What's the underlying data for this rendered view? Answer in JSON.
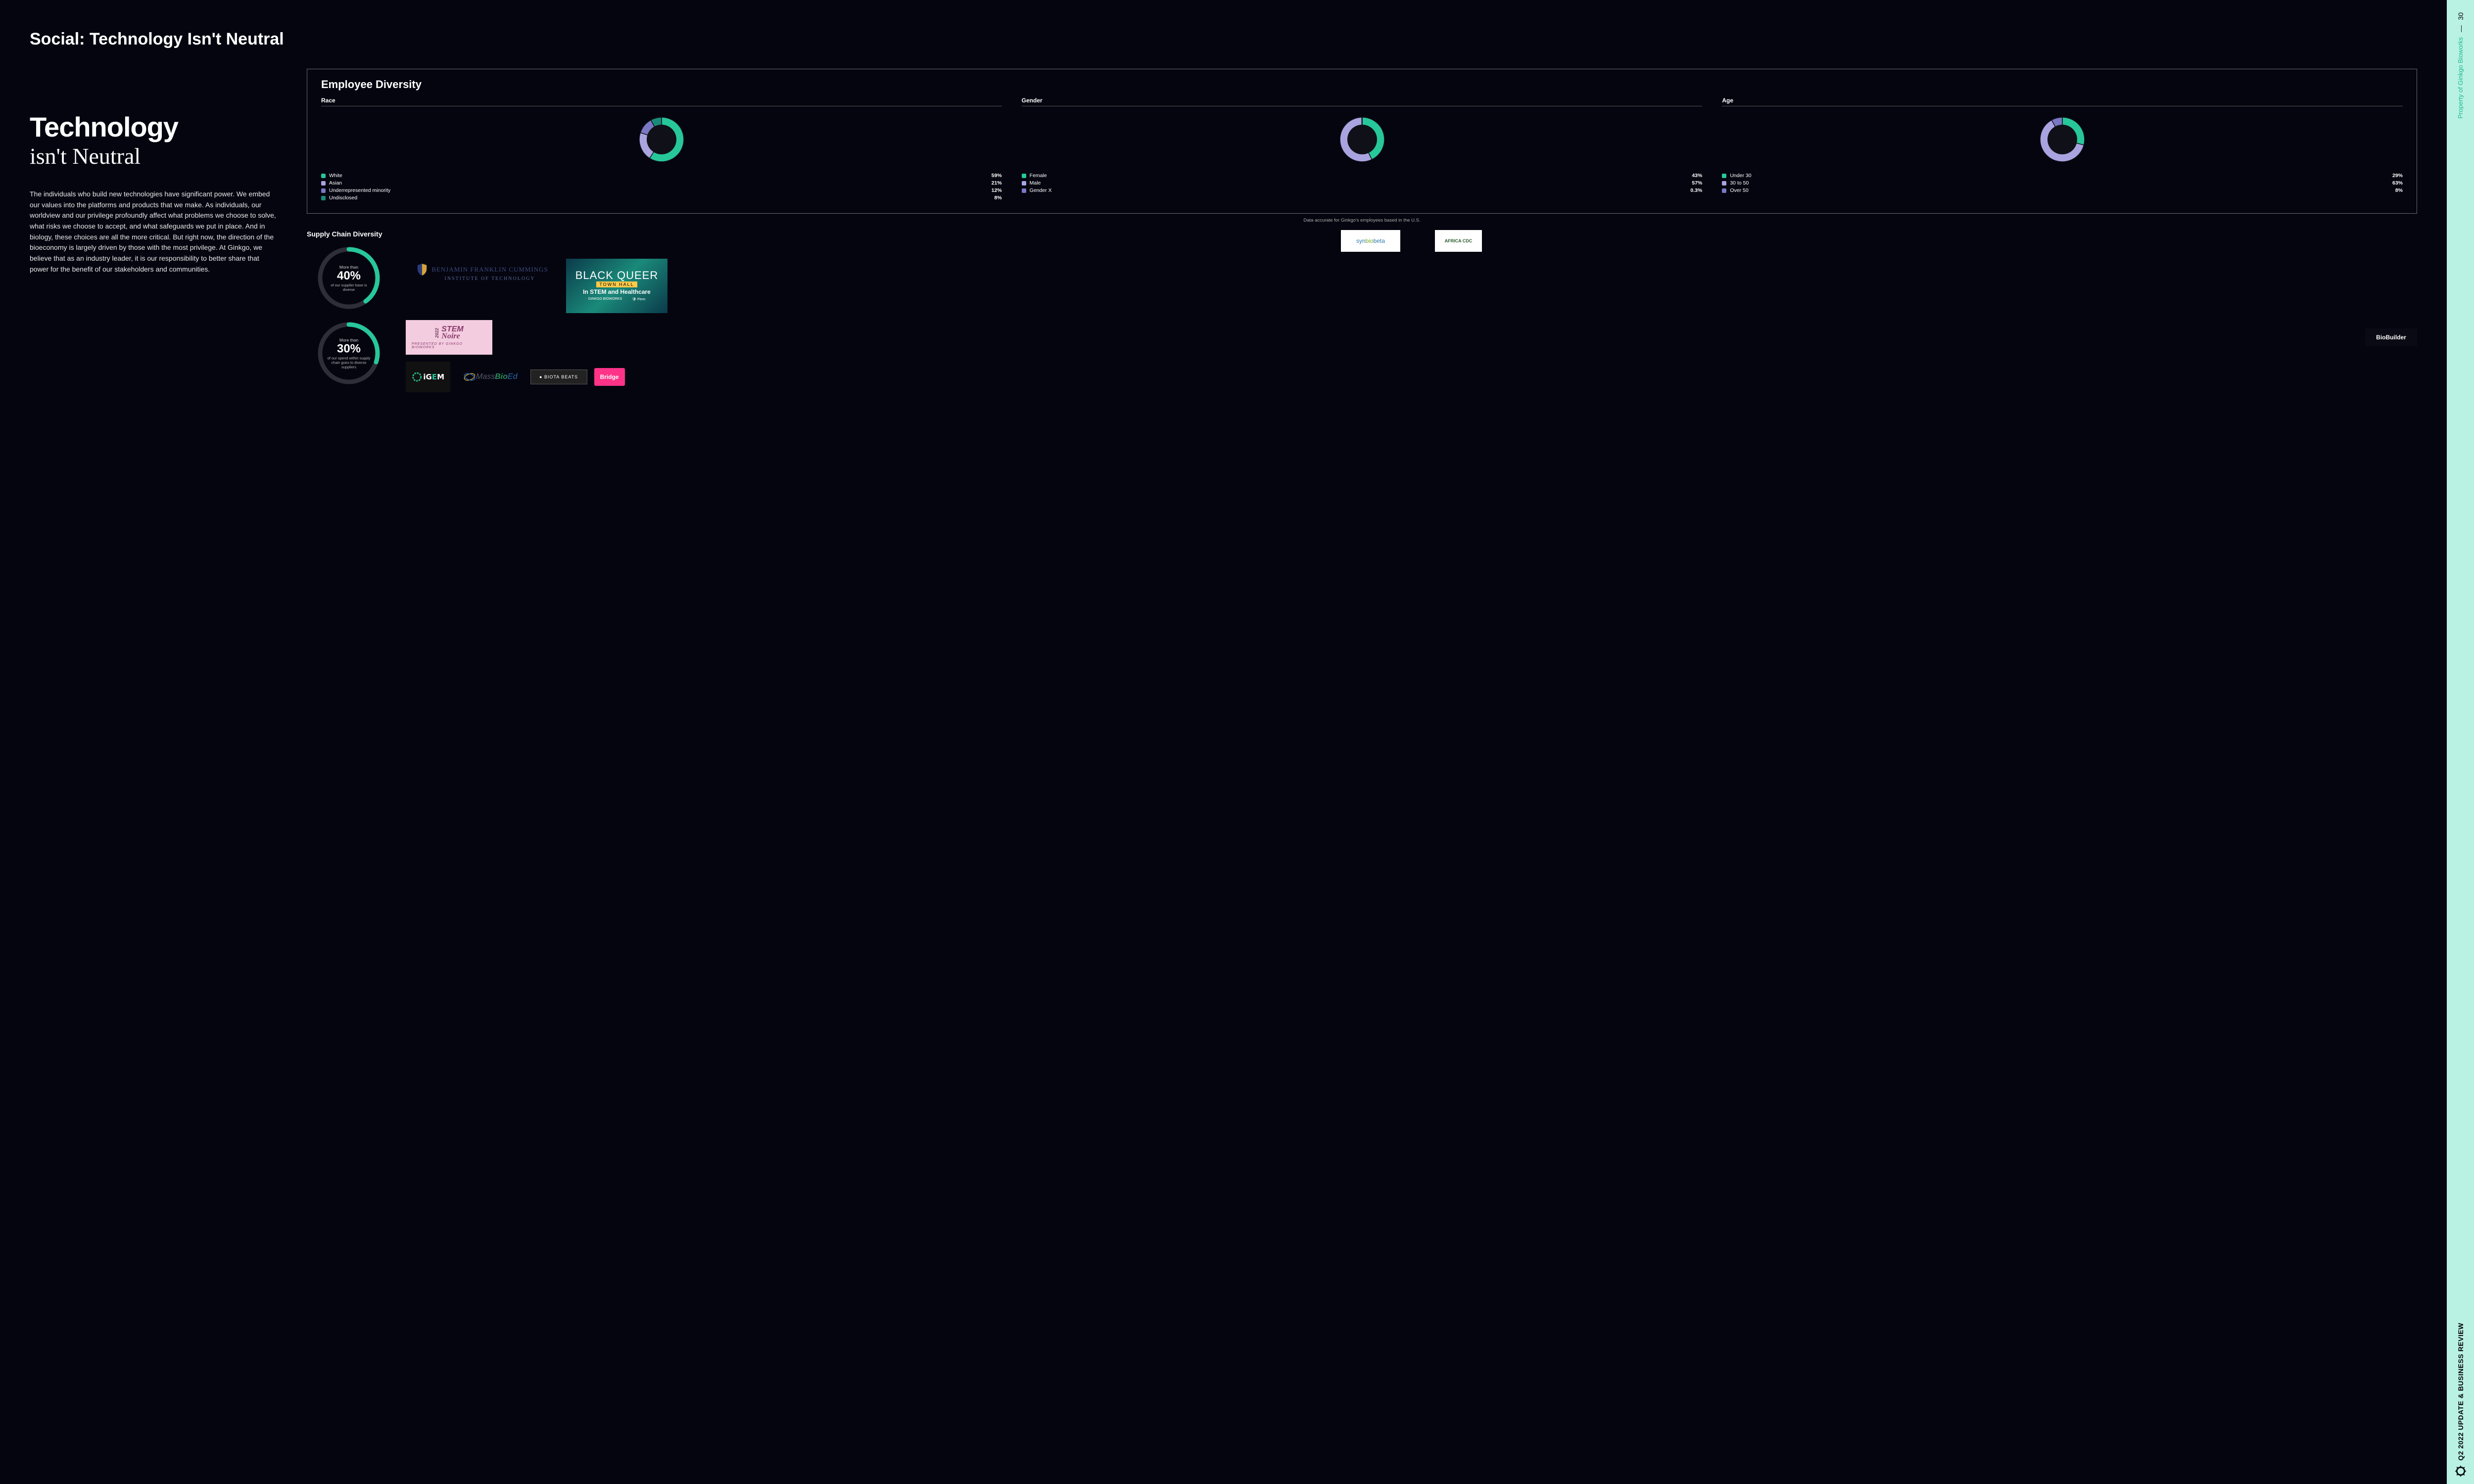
{
  "page": {
    "title": "Social: Technology Isn't Neutral",
    "headline1": "Technology",
    "headline2": "isn't Neutral",
    "body": "The individuals who build new technologies have significant power. We embed our values into the platforms and products that we make. As individuals, our worldview and our privilege profoundly affect what problems we choose to solve, what risks we choose to accept, and what safeguards we put in place. And in biology, these choices are all the more critical. But right now, the direction of the bioeconomy is largely driven by those with the most privilege. At Ginkgo, we believe that as an industry leader, it is our responsibility to better share that power for the benefit of our stakeholders and communities."
  },
  "sidebar": {
    "page_number": "30",
    "dash": "—",
    "property": "Property of Ginkgo Bioworks",
    "review": "Q2 2022 UPDATE & BUSINESS REVIEW"
  },
  "diversity": {
    "title": "Employee Diversity",
    "footnote": "Data accurate for Ginkgo's employees based in the U.S.",
    "colors": {
      "teal": "#27c79a",
      "lavender": "#a9a4e0",
      "periwinkle": "#7a78c4",
      "dark_teal": "#1a8a7a",
      "bg": "#101018"
    },
    "charts": [
      {
        "category": "Race",
        "slices": [
          {
            "label": "White",
            "value": 59,
            "color": "#27c79a"
          },
          {
            "label": "Asian",
            "value": 21,
            "color": "#a9a4e0"
          },
          {
            "label": "Underrepresented minority",
            "value": 12,
            "color": "#7a78c4"
          },
          {
            "label": "Undisclosed",
            "value": 8,
            "color": "#1a8a7a"
          }
        ]
      },
      {
        "category": "Gender",
        "slices": [
          {
            "label": "Female",
            "value": 43,
            "color": "#27c79a"
          },
          {
            "label": "Male",
            "value": 57,
            "color": "#a9a4e0"
          },
          {
            "label": "Gender X",
            "value": 0.3,
            "color": "#7a78c4"
          }
        ]
      },
      {
        "category": "Age",
        "slices": [
          {
            "label": "Under 30",
            "value": 29,
            "color": "#27c79a"
          },
          {
            "label": "30 to 50",
            "value": 63,
            "color": "#a9a4e0"
          },
          {
            "label": "Over 50",
            "value": 8,
            "color": "#7a78c4"
          }
        ]
      }
    ]
  },
  "supply": {
    "title": "Supply Chain Diversity",
    "ring_color": "#27c79a",
    "track_color": "#2e2e38",
    "gauges": [
      {
        "pre": "More than",
        "pct": "40%",
        "sub": "of our supplier base is diverse",
        "value": 40
      },
      {
        "pre": "More than",
        "pct": "30%",
        "sub": "of our spend within supply chain goes to diverse suppliers",
        "value": 30
      }
    ]
  },
  "logos": {
    "synbiobeta": "synbiobeta",
    "africacdc": "AFRICA CDC",
    "benj_line1": "BENJAMIN FRANKLIN CUMMINGS",
    "benj_line2": "INSTITUTE OF TECHNOLOGY",
    "blackq_line1": "BLACK QUEER",
    "blackq_th": "TOWN HALL",
    "blackq_line2": "In STEM and Healthcare",
    "blackq_foot1": "GINKGO BIOWORKS",
    "blackq_foot2": "🛡 Penn",
    "stemn_year": "2022",
    "stemn_line1": "STEM",
    "stemn_line2": "Noire",
    "stemn_sub": "PRESENTED BY GINKGO BIOWORKS",
    "biobuilder": "BioBuilder",
    "igem": "iGEM",
    "massbio": "MassBioEd",
    "biota": "● BIOTA BEATS",
    "bridge": "Bridge"
  }
}
